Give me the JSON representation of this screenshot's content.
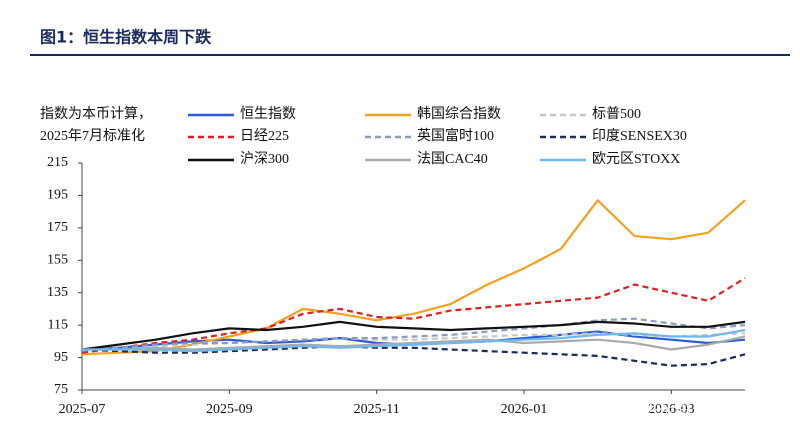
{
  "chart_data": {
    "type": "line",
    "title": "图1：恒生指数本周下跌",
    "note": [
      "指数为本币计算，",
      "2025年7月标准化"
    ],
    "watermark": "雪球：华尔街见闻",
    "categories": [
      "2025-07",
      null,
      null,
      null,
      "2025-09",
      null,
      null,
      null,
      "2025-11",
      null,
      null,
      null,
      "2026-01",
      null,
      null,
      null,
      "2026-03",
      null,
      null
    ],
    "ylim": [
      75,
      215
    ],
    "yticks": [
      75,
      95,
      115,
      135,
      155,
      175,
      195,
      215
    ],
    "series": [
      {
        "name": "恒生指数",
        "color": "#2a5bd7",
        "style": "solid",
        "values": [
          100,
          101,
          103,
          105,
          106,
          104,
          105,
          107,
          104,
          103,
          104,
          105,
          107,
          109,
          111,
          108,
          106,
          104,
          106
        ]
      },
      {
        "name": "韩国综合指数",
        "color": "#f5a020",
        "style": "solid",
        "values": [
          97,
          98,
          99,
          103,
          108,
          113,
          125,
          122,
          118,
          122,
          128,
          140,
          150,
          162,
          192,
          170,
          168,
          172,
          192
        ]
      },
      {
        "name": "标普500",
        "color": "#c8c8c8",
        "style": "dashed",
        "values": [
          100,
          101,
          102,
          103,
          104,
          105,
          106,
          107,
          106,
          106,
          107,
          108,
          109,
          109,
          110,
          109,
          108,
          109,
          110
        ]
      },
      {
        "name": "日经225",
        "color": "#e02020",
        "style": "dashed",
        "values": [
          98,
          101,
          104,
          106,
          110,
          113,
          122,
          125,
          120,
          119,
          124,
          126,
          128,
          130,
          132,
          140,
          135,
          130,
          144
        ]
      },
      {
        "name": "英国富时100",
        "color": "#8a9cc4",
        "style": "dashed",
        "values": [
          100,
          101,
          103,
          104,
          104,
          105,
          106,
          107,
          107,
          108,
          109,
          111,
          113,
          115,
          118,
          119,
          116,
          113,
          115
        ]
      },
      {
        "name": "印度SENSEX30",
        "color": "#1a2a5a",
        "style": "dashed",
        "values": [
          100,
          99,
          98,
          98,
          99,
          100,
          101,
          102,
          101,
          101,
          100,
          99,
          98,
          97,
          96,
          93,
          90,
          91,
          97
        ]
      },
      {
        "name": "沪深300",
        "color": "#111111",
        "style": "solid",
        "values": [
          100,
          103,
          106,
          110,
          113,
          112,
          114,
          117,
          114,
          113,
          112,
          113,
          114,
          115,
          117,
          116,
          114,
          114,
          117
        ]
      },
      {
        "name": "法国CAC40",
        "color": "#aaaaaa",
        "style": "solid",
        "values": [
          100,
          100,
          101,
          100,
          101,
          102,
          103,
          102,
          103,
          104,
          105,
          106,
          104,
          105,
          106,
          104,
          100,
          103,
          108
        ]
      },
      {
        "name": "欧元区STOXX",
        "color": "#6fb8ee",
        "style": "solid",
        "values": [
          100,
          100,
          100,
          99,
          100,
          101,
          102,
          101,
          102,
          103,
          104,
          105,
          106,
          107,
          109,
          110,
          108,
          108,
          112
        ]
      }
    ]
  }
}
